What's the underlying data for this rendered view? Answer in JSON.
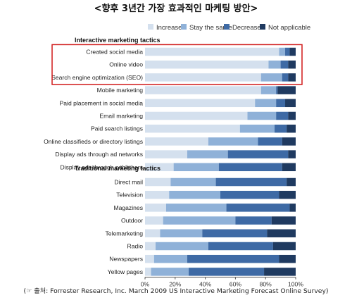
{
  "title": "<향후 3년간 가장 효과적인 마케팅 방안>",
  "source": "(☞ 출처: Forrester Research, Inc. March 2009 US Interactive Marketing Forecast Online Survey)",
  "colors": {
    "Increase": "#d4e0ee",
    "Stay the same": "#8fb1d8",
    "Decrease": "#3e6aa5",
    "Not applicable": "#1f3a60",
    "highlight": "#d01818"
  },
  "chart_data": {
    "type": "bar",
    "orientation": "horizontal",
    "stacked": true,
    "xlim": [
      0,
      100
    ],
    "x_ticks": [
      "0%",
      "20%",
      "40%",
      "60%",
      "80%",
      "100%"
    ],
    "legend": [
      "Increase",
      "Stay the same",
      "Decrease",
      "Not applicable"
    ],
    "legend_position": "top-right",
    "groups": [
      {
        "label": "Interactive marketing tactics",
        "highlighted_count": 3,
        "categories": [
          "Created social media",
          "Online video",
          "Search engine optimization (SEO)",
          "Mobile marketing",
          "Paid placement in social media",
          "Email marketing",
          "Paid search listings",
          "Online classifieds or directory listings",
          "Display ads through ad networks",
          "Display ads through publishers"
        ]
      },
      {
        "label": "Traditional marketing tactics",
        "highlighted_count": 0,
        "categories": [
          "Direct mail",
          "Television",
          "Magazines",
          "Outdoor",
          "Telemarketing",
          "Radio",
          "Newspapers",
          "Yellow pages"
        ]
      }
    ],
    "series": [
      {
        "name": "Increase",
        "values": [
          89,
          82,
          77,
          77,
          73,
          68,
          63,
          42,
          28,
          19,
          17,
          16,
          14,
          12,
          10,
          7,
          6,
          4
        ]
      },
      {
        "name": "Stay the same",
        "values": [
          4,
          8,
          14,
          10,
          14,
          19,
          23,
          33,
          27,
          30,
          30,
          34,
          40,
          48,
          28,
          35,
          22,
          25
        ]
      },
      {
        "name": "Decrease",
        "values": [
          3,
          5,
          4,
          1,
          6,
          8,
          8,
          16,
          40,
          42,
          47,
          39,
          42,
          24,
          43,
          43,
          61,
          50
        ]
      },
      {
        "name": "Not applicable",
        "values": [
          4,
          5,
          5,
          12,
          7,
          5,
          6,
          9,
          5,
          9,
          6,
          11,
          4,
          16,
          19,
          15,
          11,
          21
        ]
      }
    ]
  }
}
